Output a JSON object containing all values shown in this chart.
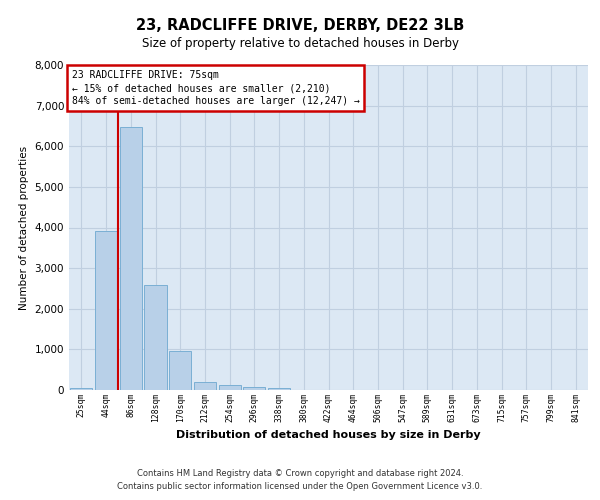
{
  "title1": "23, RADCLIFFE DRIVE, DERBY, DE22 3LB",
  "title2": "Size of property relative to detached houses in Derby",
  "xlabel": "Distribution of detached houses by size in Derby",
  "ylabel": "Number of detached properties",
  "bar_color": "#b8d0e8",
  "bar_edge_color": "#7aafd4",
  "grid_color": "#c0cfe0",
  "background_color": "#dce8f4",
  "annotation_box_edgecolor": "#cc0000",
  "vline_color": "#cc0000",
  "categories": [
    "25sqm",
    "44sqm",
    "86sqm",
    "128sqm",
    "170sqm",
    "212sqm",
    "254sqm",
    "296sqm",
    "338sqm",
    "380sqm",
    "422sqm",
    "464sqm",
    "506sqm",
    "547sqm",
    "589sqm",
    "631sqm",
    "673sqm",
    "715sqm",
    "757sqm",
    "799sqm",
    "841sqm"
  ],
  "values": [
    55,
    3920,
    6480,
    2580,
    950,
    200,
    120,
    80,
    55,
    0,
    0,
    0,
    0,
    0,
    0,
    0,
    0,
    0,
    0,
    0,
    0
  ],
  "vline_x": 1.5,
  "annotation_line1": "23 RADCLIFFE DRIVE: 75sqm",
  "annotation_line2": "← 15% of detached houses are smaller (2,210)",
  "annotation_line3": "84% of semi-detached houses are larger (12,247) →",
  "ylim_max": 8000,
  "yticks": [
    0,
    1000,
    2000,
    3000,
    4000,
    5000,
    6000,
    7000,
    8000
  ],
  "footer1": "Contains HM Land Registry data © Crown copyright and database right 2024.",
  "footer2": "Contains public sector information licensed under the Open Government Licence v3.0."
}
